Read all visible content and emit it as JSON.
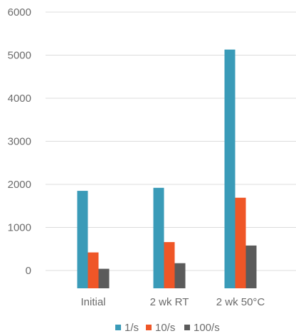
{
  "chart_data": {
    "type": "bar",
    "categories": [
      "Initial",
      "2 wk RT",
      "2 wk 50°C"
    ],
    "series": [
      {
        "name": "1/s",
        "values": [
          1850,
          1920,
          5130
        ],
        "color": "#3a9bb8"
      },
      {
        "name": "10/s",
        "values": [
          420,
          660,
          1690
        ],
        "color": "#ef5627"
      },
      {
        "name": "100/s",
        "values": [
          40,
          170,
          580
        ],
        "color": "#5b5b5b"
      }
    ],
    "ylim": [
      0,
      6000
    ],
    "yticks": [
      "0",
      "1000",
      "2000",
      "3000",
      "4000",
      "5000",
      "6000"
    ],
    "grid": true,
    "legend_position": "bottom",
    "title": "",
    "xlabel": "",
    "ylabel": ""
  }
}
